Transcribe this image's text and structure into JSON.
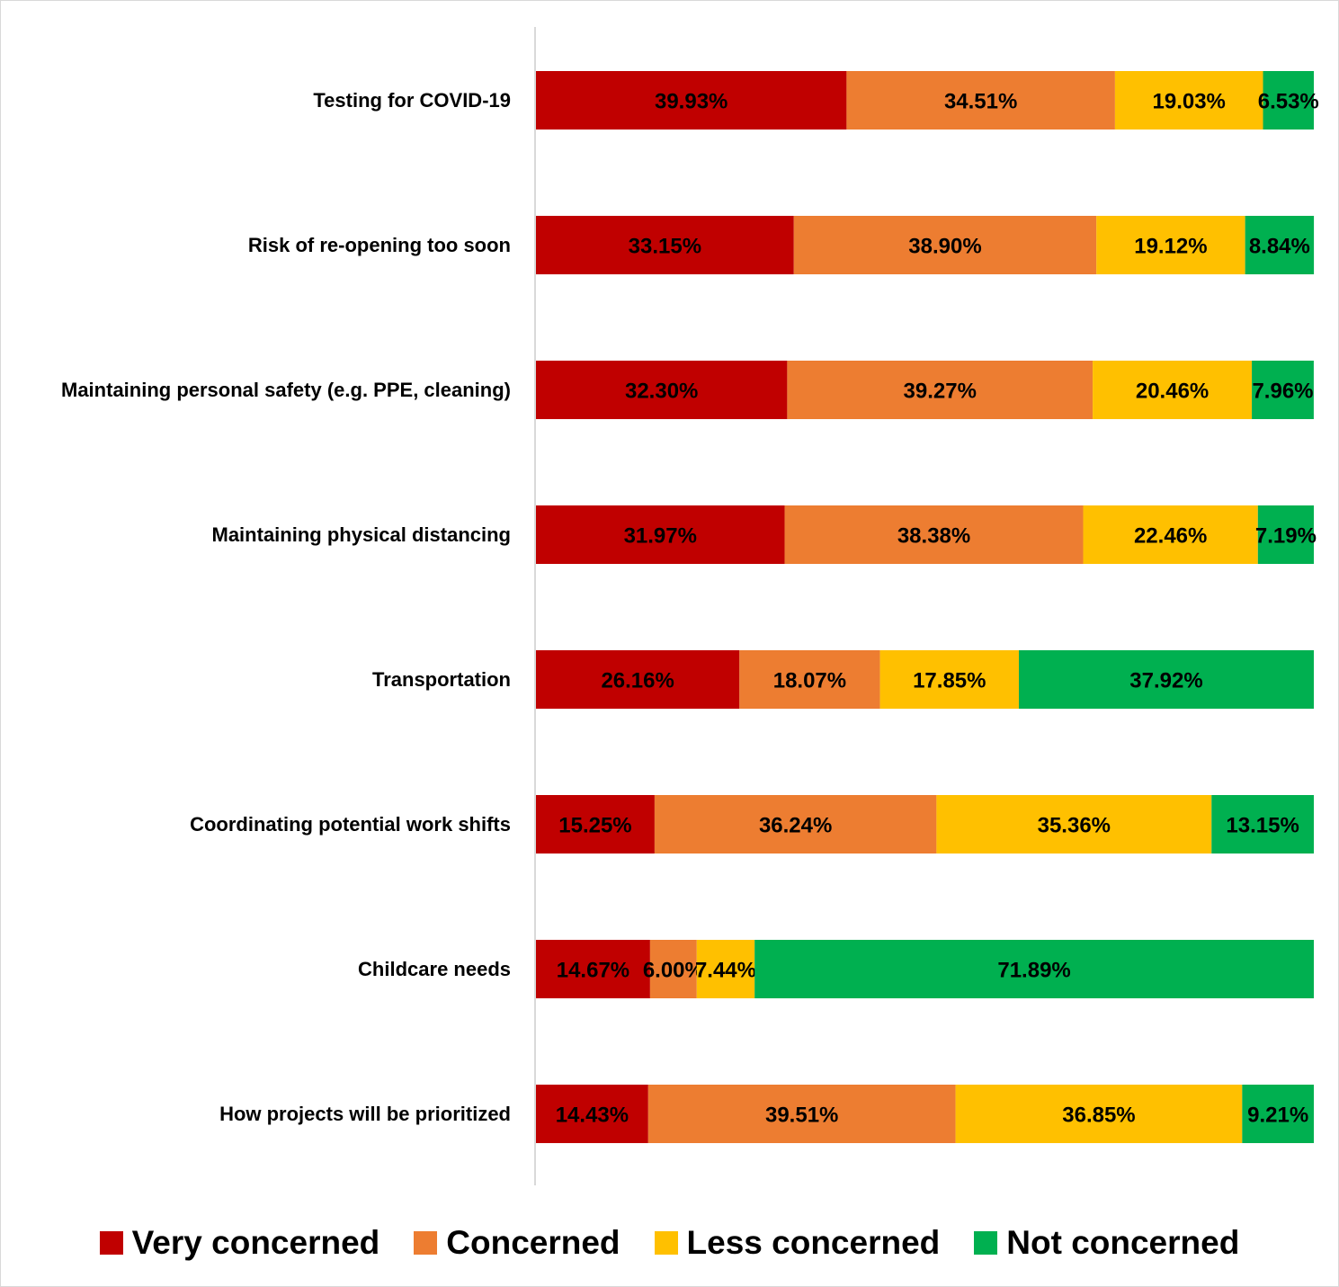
{
  "chart_data": {
    "type": "bar",
    "orientation": "horizontal",
    "stacked": "100%",
    "title": "",
    "xlabel": "",
    "ylabel": "",
    "xlim": [
      0,
      100
    ],
    "grid": false,
    "legend_position": "bottom",
    "categories": [
      "Testing for COVID-19",
      "Risk of re-opening too soon",
      "Maintaining personal safety (e.g. PPE, cleaning)",
      "Maintaining physical distancing",
      "Transportation",
      "Coordinating potential work shifts",
      "Childcare needs",
      "How projects will be prioritized"
    ],
    "series": [
      {
        "name": "Very concerned",
        "color": "#C00000",
        "values": [
          39.93,
          33.15,
          32.3,
          31.97,
          26.16,
          15.25,
          14.67,
          14.43
        ],
        "labels": [
          "39.93%",
          "33.15%",
          "32.30%",
          "31.97%",
          "26.16%",
          "15.25%",
          "14.67%",
          "14.43%"
        ]
      },
      {
        "name": "Concerned",
        "color": "#ED7D31",
        "values": [
          34.51,
          38.9,
          39.27,
          38.38,
          18.07,
          36.24,
          6.0,
          39.51
        ],
        "labels": [
          "34.51%",
          "38.90%",
          "39.27%",
          "38.38%",
          "18.07%",
          "36.24%",
          "6.00%",
          "39.51%"
        ]
      },
      {
        "name": "Less concerned",
        "color": "#FFC000",
        "values": [
          19.03,
          19.12,
          20.46,
          22.46,
          17.85,
          35.36,
          7.44,
          36.85
        ],
        "labels": [
          "19.03%",
          "19.12%",
          "20.46%",
          "22.46%",
          "17.85%",
          "35.36%",
          "7.44%",
          "36.85%"
        ]
      },
      {
        "name": "Not concerned",
        "color": "#00B050",
        "values": [
          6.53,
          8.84,
          7.96,
          7.19,
          37.92,
          13.15,
          71.89,
          9.21
        ],
        "labels": [
          "6.53%",
          "8.84%",
          "7.96%",
          "7.19%",
          "37.92%",
          "13.15%",
          "71.89%",
          "9.21%"
        ]
      }
    ]
  },
  "axis_line_color": "#d9d9d9"
}
